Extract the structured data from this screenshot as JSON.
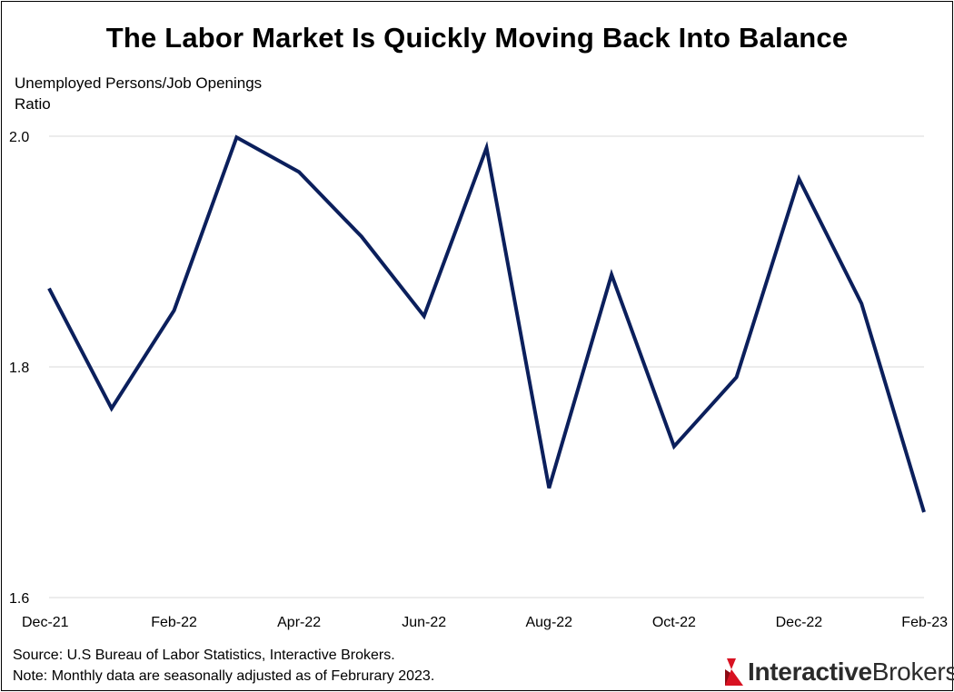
{
  "chart_data": {
    "type": "line",
    "title": "The Labor Market Is Quickly Moving Back Into Balance",
    "ylabel_lines": [
      "Unemployed Persons/Job Openings",
      "Ratio"
    ],
    "xlabel": "",
    "x": [
      "Dec-21",
      "Jan-22",
      "Feb-22",
      "Mar-22",
      "Apr-22",
      "May-22",
      "Jun-22",
      "Jul-22",
      "Aug-22",
      "Sep-22",
      "Oct-22",
      "Nov-22",
      "Dec-22",
      "Jan-23",
      "Feb-23"
    ],
    "x_tick_labels": [
      "Dec-21",
      "Feb-22",
      "Apr-22",
      "Jun-22",
      "Aug-22",
      "Oct-22",
      "Dec-22",
      "Feb-23"
    ],
    "y_ticks": [
      "1.6",
      "1.8",
      "2.0"
    ],
    "ylim": [
      1.6,
      2.0
    ],
    "grid": true,
    "series": [
      {
        "values": [
          1.868,
          1.764,
          1.849,
          1.999,
          1.969,
          1.913,
          1.844,
          1.99,
          1.695,
          1.88,
          1.731,
          1.791,
          1.963,
          1.855,
          1.674
        ],
        "color": "#0b1f5c"
      }
    ]
  },
  "footer": {
    "source": "Source: U.S Bureau of Labor Statistics, Interactive Brokers.",
    "note": "Note: Monthly data are seasonally adjusted as of Februrary 2023."
  },
  "logo": {
    "part1": "Interactive",
    "part2": "Brokers",
    "icon": "interactive-brokers-logo-icon",
    "accent_color": "#d81222"
  }
}
